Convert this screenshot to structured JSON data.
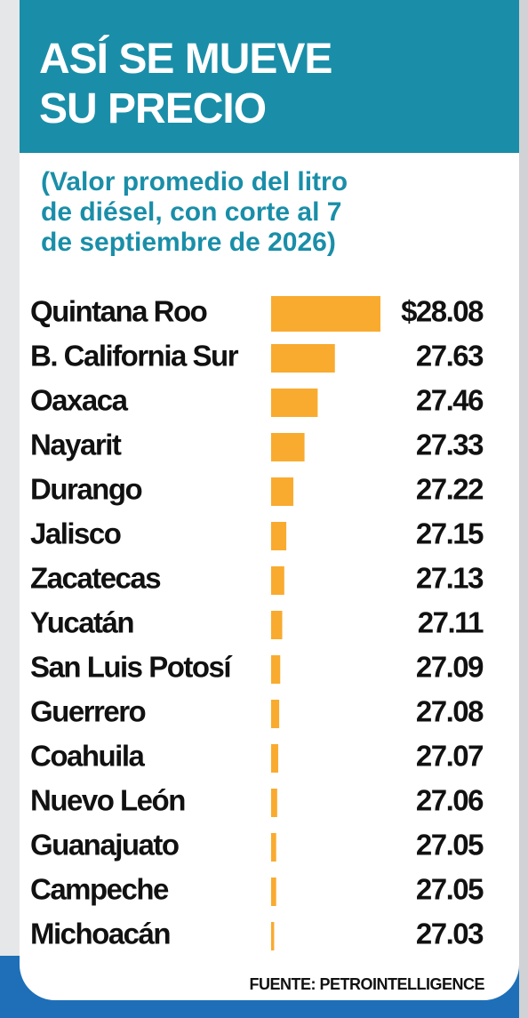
{
  "chart_data": {
    "type": "bar",
    "orientation": "horizontal",
    "title": [
      "ASÍ SE MUEVE",
      "SU PRECIO"
    ],
    "subtitle": [
      "(Valor promedio del litro",
      "de diésel, con corte al 7",
      "de septiembre de 2026)"
    ],
    "categories": [
      "Quintana Roo",
      "B. California Sur",
      "Oaxaca",
      "Nayarit",
      "Durango",
      "Jalisco",
      "Zacatecas",
      "Yucatán",
      "San Luis Potosí",
      "Guerrero",
      "Coahuila",
      "Nuevo León",
      "Guanajuato",
      "Campeche",
      "Michoacán"
    ],
    "values": [
      28.08,
      27.63,
      27.46,
      27.33,
      27.22,
      27.15,
      27.13,
      27.11,
      27.09,
      27.08,
      27.07,
      27.06,
      27.05,
      27.05,
      27.03
    ],
    "value_labels": [
      "$28.08",
      "27.63",
      "27.46",
      "27.33",
      "27.22",
      "27.15",
      "27.13",
      "27.11",
      "27.09",
      "27.08",
      "27.07",
      "27.06",
      "27.05",
      "27.05",
      "27.03"
    ],
    "color": "#f9ab2f",
    "xlim": [
      27,
      28.08
    ],
    "source": "FUENTE: PETROINTELLIGENCE"
  }
}
